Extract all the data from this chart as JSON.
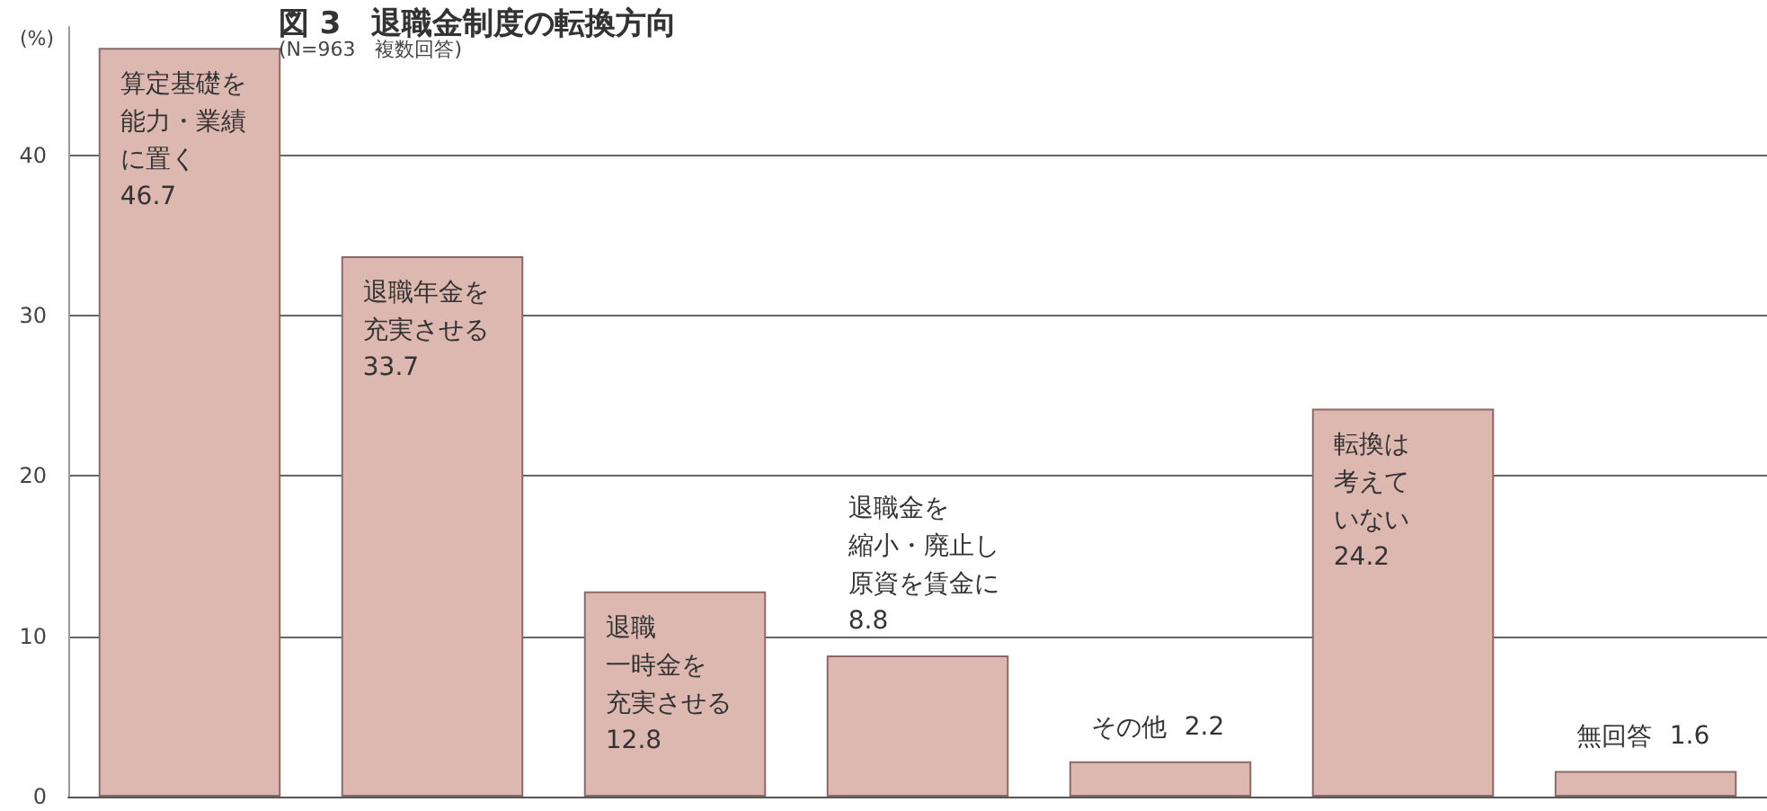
{
  "chart_data": {
    "type": "bar",
    "title": "図 3　退職金制度の転換方向",
    "subtitle": "(N=963　複数回答)",
    "ylabel": "(%)",
    "categories": [
      "算定基礎を能力・業績に置く",
      "退職年金を充実させる",
      "退職一時金を充実させる",
      "退職金を縮小・廃止し原資を賃金に",
      "その他",
      "転換は考えていない",
      "無回答"
    ],
    "values": [
      46.7,
      33.7,
      12.8,
      8.8,
      2.2,
      24.2,
      1.6
    ],
    "color": "#dcb8b0",
    "data_labels": true,
    "ylim": [
      0,
      48
    ],
    "yticks": [
      0,
      10,
      20,
      30,
      40
    ],
    "grid": "y",
    "tick_labels": "y"
  }
}
